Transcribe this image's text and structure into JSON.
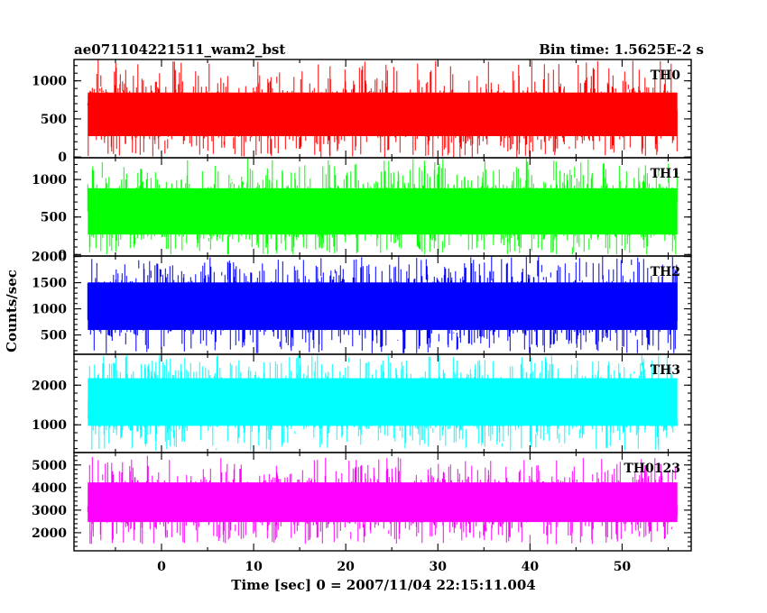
{
  "chart_data": {
    "type": "line",
    "title_left": "ae071104221511_wam2_bst",
    "title_right": "Bin time: 1.5625E-2 s",
    "xlabel": "Time [sec] 0 = 2007/11/04 22:15:11.004",
    "ylabel": "Counts/sec",
    "xlim": [
      -9.5,
      57.5
    ],
    "x_data_range": [
      -8,
      56
    ],
    "x_ticks": [
      0,
      10,
      20,
      30,
      40,
      50
    ],
    "x_tick_labels": [
      "0",
      "10",
      "20",
      "30",
      "40",
      "50"
    ],
    "panels": [
      {
        "name": "TH0",
        "color": "#ff0000",
        "ylim": [
          -10,
          1280
        ],
        "y_ticks": [
          0,
          500,
          1000
        ],
        "y_tick_labels": [
          "0",
          "500",
          "1000"
        ],
        "typical_range": [
          120,
          1000
        ],
        "peak_range": [
          0,
          1280
        ]
      },
      {
        "name": "TH1",
        "color": "#00ff00",
        "ylim": [
          -20,
          1290
        ],
        "y_ticks": [
          0,
          500,
          1000
        ],
        "y_tick_labels": [
          "0",
          "500",
          "1000"
        ],
        "typical_range": [
          100,
          1050
        ],
        "peak_range": [
          0,
          1280
        ]
      },
      {
        "name": "TH2",
        "color": "#0000ff",
        "ylim": [
          130,
          2010
        ],
        "y_ticks": [
          500,
          1000,
          1500,
          2000
        ],
        "y_tick_labels": [
          "500",
          "1000",
          "1500",
          "2000"
        ],
        "typical_range": [
          350,
          1750
        ],
        "peak_range": [
          150,
          2000
        ]
      },
      {
        "name": "TH3",
        "color": "#00ffff",
        "ylim": [
          300,
          2780
        ],
        "y_ticks": [
          1000,
          2000
        ],
        "y_tick_labels": [
          "1000",
          "2000"
        ],
        "typical_range": [
          650,
          2500
        ],
        "peak_range": [
          350,
          2750
        ]
      },
      {
        "name": "TH0123",
        "color": "#ff00ff",
        "ylim": [
          1200,
          5550
        ],
        "y_ticks": [
          2000,
          3000,
          4000,
          5000
        ],
        "y_tick_labels": [
          "2000",
          "3000",
          "4000",
          "5000"
        ],
        "typical_range": [
          2000,
          4700
        ],
        "peak_range": [
          1500,
          5400
        ]
      }
    ]
  }
}
